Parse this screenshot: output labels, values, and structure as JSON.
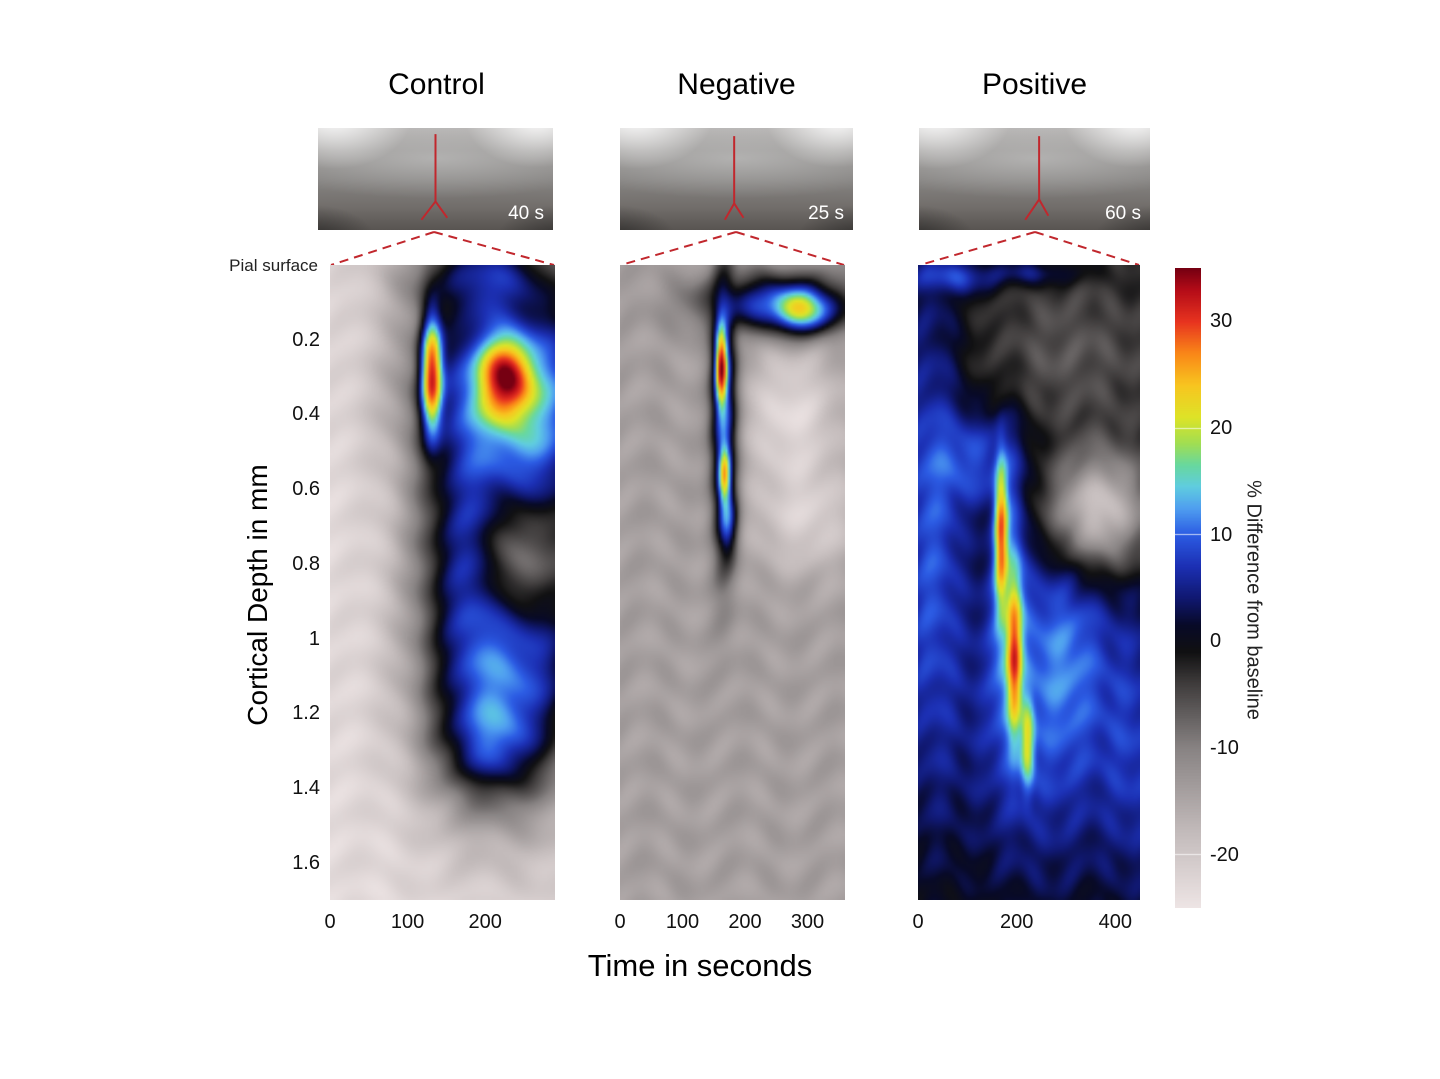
{
  "figure": {
    "pial_surface_label": "Pial surface",
    "x_axis_label": "Time in seconds",
    "y_axis_label": "Cortical Depth in mm"
  },
  "chart_data": {
    "type": "heatmap",
    "title": "",
    "xlabel": "Time in seconds",
    "ylabel": "Cortical Depth in mm",
    "depth_range_mm": [
      0,
      1.7
    ],
    "depth_ticks_mm": [
      0.2,
      0.4,
      0.6,
      0.8,
      1,
      1.2,
      1.4,
      1.6
    ],
    "colorbar": {
      "label": "% Difference from baseline",
      "ticks": [
        30,
        20,
        10,
        0,
        -10,
        -20
      ],
      "value_range": [
        -25,
        35
      ],
      "white_tick_values": [
        20,
        10,
        -20
      ],
      "gradient_stops": [
        [
          -25,
          "#eee5e5"
        ],
        [
          -18,
          "#c4bcbc"
        ],
        [
          -10,
          "#888383"
        ],
        [
          -4,
          "#403d3d"
        ],
        [
          -1,
          "#111112"
        ],
        [
          1.5,
          "#080a28"
        ],
        [
          4,
          "#101870"
        ],
        [
          7,
          "#1c30b4"
        ],
        [
          10,
          "#2c5ce4"
        ],
        [
          12.5,
          "#50a0f0"
        ],
        [
          14.5,
          "#60cde0"
        ],
        [
          16.5,
          "#68d8a0"
        ],
        [
          18.5,
          "#a0de54"
        ],
        [
          21,
          "#dee428"
        ],
        [
          24,
          "#f8c620"
        ],
        [
          27,
          "#fa8818"
        ],
        [
          30,
          "#e83420"
        ],
        [
          33,
          "#b40c18"
        ],
        [
          35,
          "#760012"
        ]
      ]
    },
    "panels": [
      {
        "name": "Control",
        "image_time_label": "40 s",
        "time_range_s": [
          0,
          290
        ],
        "x_ticks_s": [
          0,
          100,
          200
        ],
        "baseline_pct": -23,
        "features": [
          {
            "t": 205,
            "d": 0.03,
            "st": 75,
            "sd": 0.1,
            "v": 27
          },
          {
            "t": 195,
            "d": 0.32,
            "st": 70,
            "sd": 0.22,
            "v": 32
          },
          {
            "t": 185,
            "d": 0.72,
            "st": 55,
            "sd": 0.28,
            "v": 30
          },
          {
            "t": 200,
            "d": 1.08,
            "st": 62,
            "sd": 0.26,
            "v": 30
          },
          {
            "t": 262,
            "d": 0.55,
            "st": 55,
            "sd": 0.25,
            "v": 29
          },
          {
            "t": 268,
            "d": 1.0,
            "st": 55,
            "sd": 0.3,
            "v": 28
          },
          {
            "t": 290,
            "d": 0.3,
            "st": 50,
            "sd": 0.22,
            "v": 27
          },
          {
            "t": 210,
            "d": 1.28,
            "st": 55,
            "sd": 0.12,
            "v": 24
          },
          {
            "t": 131,
            "d": 0.29,
            "st": 12,
            "sd": 0.14,
            "v": 50
          },
          {
            "t": 228,
            "d": 0.3,
            "st": 30,
            "sd": 0.1,
            "v": 48
          },
          {
            "t": 242,
            "d": 0.78,
            "st": 40,
            "sd": 0.14,
            "v": -18
          }
        ]
      },
      {
        "name": "Negative",
        "image_time_label": "25 s",
        "time_range_s": [
          0,
          360
        ],
        "x_ticks_s": [
          0,
          100,
          200,
          300
        ],
        "baseline_pct": -14,
        "features": [
          {
            "t": 166,
            "d": 0.38,
            "st": 15,
            "sd": 0.27,
            "v": 26
          },
          {
            "t": 162,
            "d": 0.27,
            "st": 8,
            "sd": 0.09,
            "v": 44
          },
          {
            "t": 167,
            "d": 0.56,
            "st": 8,
            "sd": 0.07,
            "v": 34
          },
          {
            "t": 172,
            "d": 0.68,
            "st": 12,
            "sd": 0.08,
            "v": 22
          },
          {
            "t": 255,
            "d": 0.1,
            "st": 85,
            "sd": 0.055,
            "v": 24
          },
          {
            "t": 292,
            "d": 0.12,
            "st": 38,
            "sd": 0.045,
            "v": 32
          },
          {
            "t": 275,
            "d": 0.4,
            "st": 55,
            "sd": 0.13,
            "v": -9
          },
          {
            "t": 300,
            "d": 0.68,
            "st": 60,
            "sd": 0.1,
            "v": -7
          }
        ]
      },
      {
        "name": "Positive",
        "image_time_label": "60 s",
        "time_range_s": [
          0,
          450
        ],
        "x_ticks_s": [
          0,
          200,
          400
        ],
        "baseline_pct": -1.5,
        "features": [
          {
            "t": 25,
            "d": 0.75,
            "st": 55,
            "sd": 0.55,
            "v": 10.5
          },
          {
            "t": 70,
            "d": 0.03,
            "st": 70,
            "sd": 0.035,
            "v": 10
          },
          {
            "t": 230,
            "d": 0.02,
            "st": 70,
            "sd": 0.025,
            "v": 7
          },
          {
            "t": 110,
            "d": 0.52,
            "st": 85,
            "sd": 0.11,
            "v": 10.5
          },
          {
            "t": 260,
            "d": 1.15,
            "st": 150,
            "sd": 0.38,
            "v": 10.5
          },
          {
            "t": 185,
            "d": 0.9,
            "st": 28,
            "sd": 0.32,
            "v": 15
          },
          {
            "t": 168,
            "d": 0.72,
            "st": 11,
            "sd": 0.16,
            "v": 29
          },
          {
            "t": 195,
            "d": 1.05,
            "st": 13,
            "sd": 0.17,
            "v": 29
          },
          {
            "t": 222,
            "d": 1.28,
            "st": 12,
            "sd": 0.1,
            "v": 22
          },
          {
            "t": 300,
            "d": 1.05,
            "st": 65,
            "sd": 0.22,
            "v": 9
          },
          {
            "t": 440,
            "d": 1.3,
            "st": 60,
            "sd": 0.3,
            "v": 8
          },
          {
            "t": 365,
            "d": 0.66,
            "st": 75,
            "sd": 0.11,
            "v": -21
          },
          {
            "t": 300,
            "d": 0.25,
            "st": 140,
            "sd": 0.16,
            "v": -5
          }
        ]
      }
    ]
  }
}
